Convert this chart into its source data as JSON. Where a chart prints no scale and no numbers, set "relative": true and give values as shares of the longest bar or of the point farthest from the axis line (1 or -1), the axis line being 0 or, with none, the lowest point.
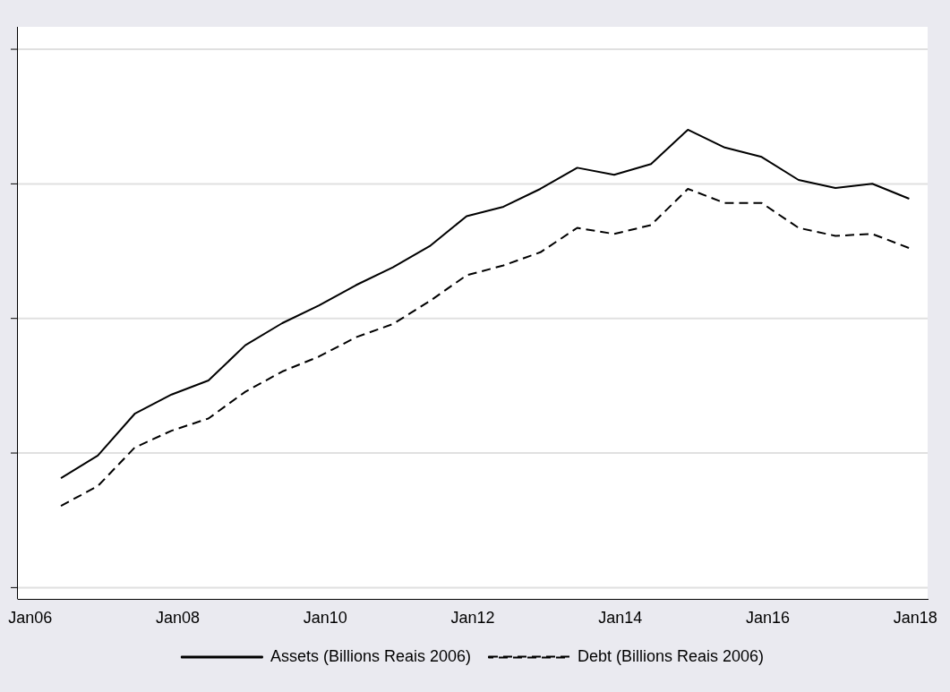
{
  "chart_data": {
    "type": "line",
    "relative": true,
    "grid": "y",
    "legend": "bottom",
    "x": [
      "2006-06",
      "2006-12",
      "2007-06",
      "2007-12",
      "2008-06",
      "2008-12",
      "2009-06",
      "2009-12",
      "2010-06",
      "2010-12",
      "2011-06",
      "2011-12",
      "2012-06",
      "2012-12",
      "2013-06",
      "2013-12",
      "2014-06",
      "2014-12",
      "2015-06",
      "2015-12",
      "2016-06",
      "2016-12",
      "2017-06",
      "2017-12"
    ],
    "xlim": [
      "2005-11",
      "2018-03"
    ],
    "xticks": [
      {
        "value": "2006-01",
        "label": "Jan06"
      },
      {
        "value": "2008-01",
        "label": "Jan08"
      },
      {
        "value": "2010-01",
        "label": "Jan10"
      },
      {
        "value": "2012-01",
        "label": "Jan12"
      },
      {
        "value": "2014-01",
        "label": "Jan14"
      },
      {
        "value": "2016-01",
        "label": "Jan16"
      },
      {
        "value": "2018-01",
        "label": "Jan18"
      }
    ],
    "series": [
      {
        "name": "Assets (Billions Reais 2006)",
        "color": "#000000",
        "line_style": "solid",
        "values": [
          0.258,
          0.306,
          0.395,
          0.436,
          0.466,
          0.541,
          0.588,
          0.626,
          0.669,
          0.707,
          0.752,
          0.816,
          0.836,
          0.874,
          0.919,
          0.904,
          0.927,
          1,
          0.962,
          0.942,
          0.893,
          0.876,
          0.885,
          0.853
        ]
      },
      {
        "name": "Debt (Billions Reais 2006)",
        "color": "#000000",
        "line_style": "dashed",
        "values": [
          0.199,
          0.241,
          0.323,
          0.359,
          0.385,
          0.442,
          0.485,
          0.517,
          0.558,
          0.586,
          0.635,
          0.69,
          0.711,
          0.739,
          0.791,
          0.778,
          0.797,
          0.874,
          0.844,
          0.844,
          0.791,
          0.774,
          0.778,
          0.748
        ]
      }
    ]
  }
}
